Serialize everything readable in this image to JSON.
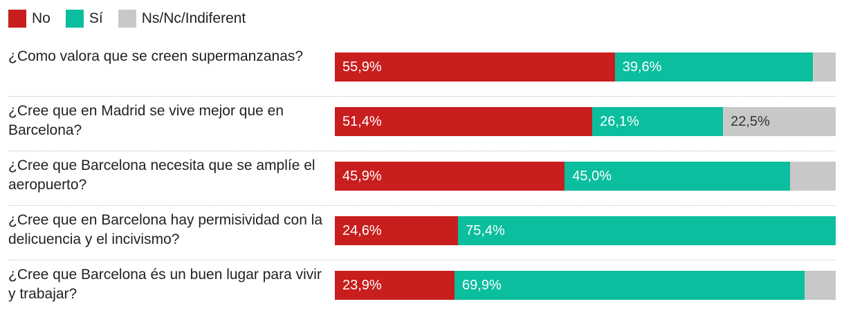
{
  "legend": [
    {
      "label": "No",
      "color": "#c81e1e"
    },
    {
      "label": "Sí",
      "color": "#0bbe9e"
    },
    {
      "label": "Ns/Nc/Indiferent",
      "color": "#c8c8c8"
    }
  ],
  "chart_data": {
    "type": "bar",
    "orientation": "horizontal",
    "stacked": true,
    "title": "",
    "xlim": [
      0,
      100
    ],
    "legend_position": "top-left",
    "categories": [
      "¿Como valora que se creen supermanzanas?",
      "¿Cree que en Madrid se vive mejor que en Barcelona?",
      "¿Cree que Barcelona necesita que se amplíe el aeropuerto?",
      "¿Cree que en Barcelona hay permisividad con la delicuencia y el incivismo?",
      "¿Cree que Barcelona és un buen lugar para vivir y trabajar?"
    ],
    "series": [
      {
        "name": "No",
        "color": "#c81e1e",
        "text_color": "#ffffff",
        "values": [
          55.9,
          51.4,
          45.9,
          24.6,
          23.9
        ],
        "labels": [
          "55,9%",
          "51,4%",
          "45,9%",
          "24,6%",
          "23,9%"
        ]
      },
      {
        "name": "Sí",
        "color": "#0bbe9e",
        "text_color": "#ffffff",
        "values": [
          39.6,
          26.1,
          45.0,
          75.4,
          69.9
        ],
        "labels": [
          "39,6%",
          "26,1%",
          "45,0%",
          "75,4%",
          "69,9%"
        ]
      },
      {
        "name": "Ns/Nc/Indiferent",
        "color": "#c8c8c8",
        "text_color": "#333333",
        "values": [
          4.5,
          22.5,
          9.1,
          0.0,
          6.2
        ],
        "labels": [
          "",
          "22,5%",
          "",
          "",
          ""
        ]
      }
    ]
  }
}
